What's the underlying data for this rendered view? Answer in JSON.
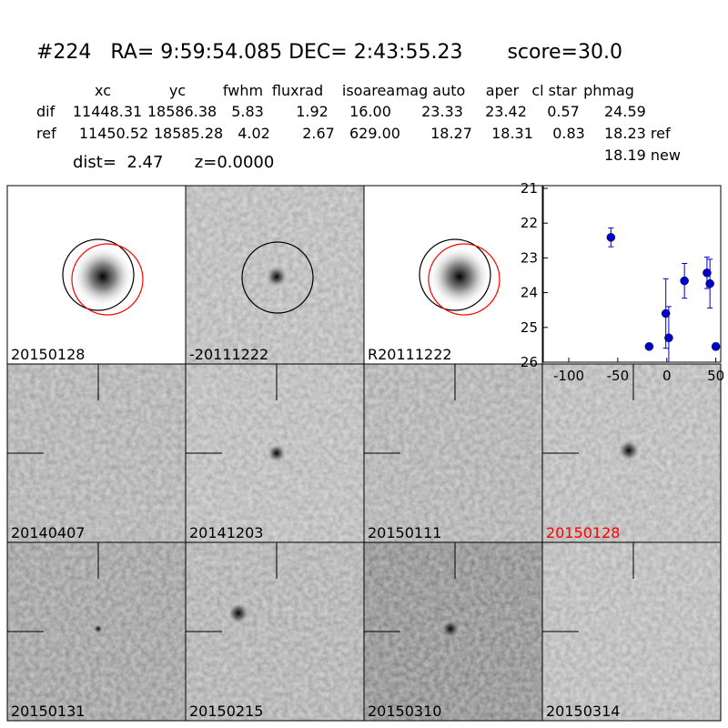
{
  "header": {
    "title": "#224   RA= 9:59:54.085 DEC= 2:43:55.23       score=30.0"
  },
  "table": {
    "columns": [
      "xc",
      "yc",
      "fwhm",
      "fluxrad",
      "isoarea",
      "mag auto",
      "aper",
      "cl star",
      "phmag"
    ],
    "rows": [
      [
        "dif",
        "11448.31",
        "18586.38",
        "5.83",
        "1.92",
        "16.00",
        "23.33",
        "23.42",
        "0.57",
        "24.59"
      ],
      [
        "ref",
        "11450.52",
        "18585.28",
        "4.02",
        "2.67",
        "629.00",
        "18.27",
        "18.31",
        "0.83",
        "18.23 ref"
      ]
    ],
    "note": "18.19 new"
  },
  "summary": "dist=  2.47      z=0.0000",
  "panels": [
    {
      "label": "20150128"
    },
    {
      "label": "-20111222"
    },
    {
      "label": "R20111222"
    },
    {
      "label": "20140407"
    },
    {
      "label": "20141203"
    },
    {
      "label": "20150111"
    },
    {
      "label": "20150128",
      "color": "#ff0000"
    },
    {
      "label": "20150131"
    },
    {
      "label": "20150215"
    },
    {
      "label": "20150310"
    },
    {
      "label": "20150314"
    }
  ],
  "chart_data": {
    "type": "scatter",
    "color": "#0000cc",
    "x": [
      -57,
      -18,
      -1,
      2,
      18,
      41,
      44,
      50
    ],
    "values": [
      22.41,
      25.55,
      24.6,
      25.3,
      23.66,
      23.43,
      23.74,
      25.55
    ],
    "errors": [
      0.27,
      0.08,
      1.0,
      0.9,
      0.5,
      0.45,
      0.7,
      0.1
    ],
    "xlim": [
      -126,
      55
    ],
    "ylim": [
      21,
      26
    ],
    "y_inverted": true,
    "xticks": [
      -100,
      -50,
      0,
      50
    ],
    "yticks": [
      21,
      22,
      23,
      24,
      25,
      26
    ]
  }
}
